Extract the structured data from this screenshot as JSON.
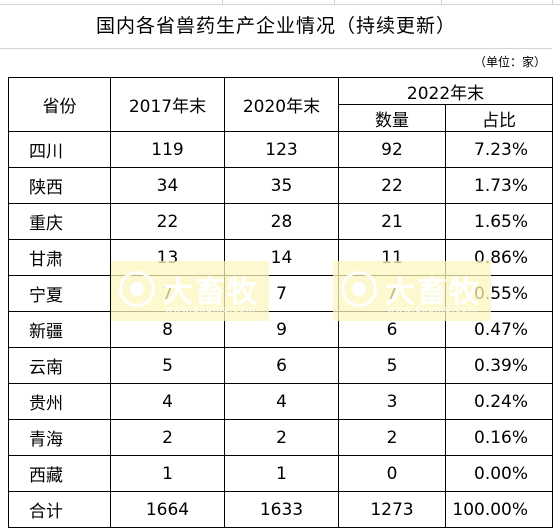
{
  "title": "国内各省兽药生产企业情况（持续更新）",
  "unit_note": "（单位：家）",
  "header": {
    "province": "省份",
    "y2017": "2017年末",
    "y2020": "2020年末",
    "y2022": "2022年末",
    "count": "数量",
    "share": "占比"
  },
  "rows": [
    {
      "province": "四川",
      "y2017": "119",
      "y2020": "123",
      "count": "92",
      "share": "7.23%"
    },
    {
      "province": "陕西",
      "y2017": "34",
      "y2020": "35",
      "count": "22",
      "share": "1.73%"
    },
    {
      "province": "重庆",
      "y2017": "22",
      "y2020": "28",
      "count": "21",
      "share": "1.65%"
    },
    {
      "province": "甘肃",
      "y2017": "13",
      "y2020": "14",
      "count": "11",
      "share": "0.86%"
    },
    {
      "province": "宁夏",
      "y2017": "7",
      "y2020": "7",
      "count": "7",
      "share": "0.55%"
    },
    {
      "province": "新疆",
      "y2017": "8",
      "y2020": "9",
      "count": "6",
      "share": "0.47%"
    },
    {
      "province": "云南",
      "y2017": "5",
      "y2020": "6",
      "count": "5",
      "share": "0.39%"
    },
    {
      "province": "贵州",
      "y2017": "4",
      "y2020": "4",
      "count": "3",
      "share": "0.24%"
    },
    {
      "province": "青海",
      "y2017": "2",
      "y2020": "2",
      "count": "2",
      "share": "0.16%"
    },
    {
      "province": "西藏",
      "y2017": "1",
      "y2020": "1",
      "count": "0",
      "share": "0.00%"
    }
  ],
  "total": {
    "province": "合计",
    "y2017": "1664",
    "y2020": "1633",
    "count": "1273",
    "share": "100.00%"
  },
  "watermark": {
    "name": "大畜牧",
    "url": "www.dxumu.com"
  }
}
